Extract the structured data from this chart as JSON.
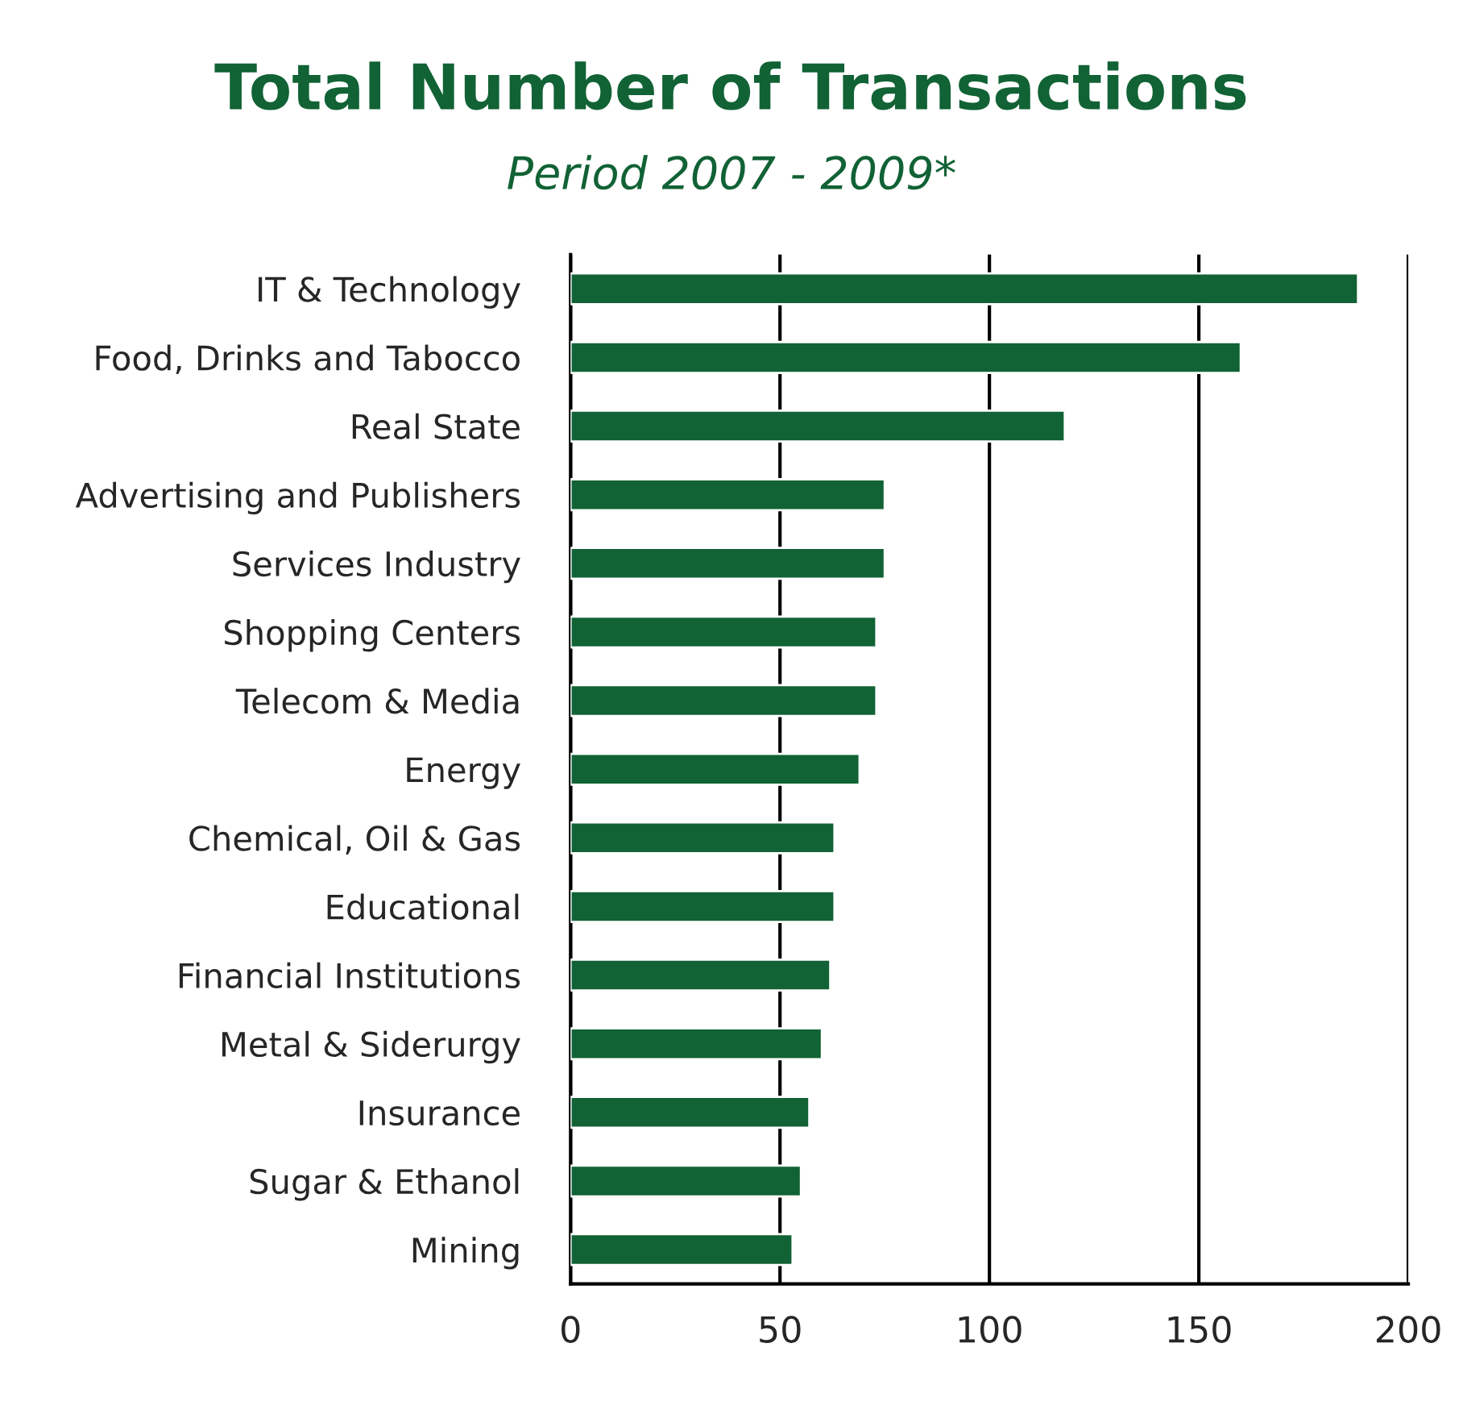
{
  "chart_data": {
    "type": "bar",
    "orientation": "horizontal",
    "title": "Total Number of Transactions",
    "subtitle": "Period 2007 - 2009*",
    "categories": [
      "IT & Technology",
      "Food, Drinks and Tabocco",
      "Real State",
      "Advertising and Publishers",
      "Services Industry",
      "Shopping Centers",
      "Telecom & Media",
      "Energy",
      "Chemical, Oil & Gas",
      "Educational",
      "Financial Institutions",
      "Metal & Siderurgy",
      "Insurance",
      "Sugar & Ethanol",
      "Mining"
    ],
    "values": [
      188,
      160,
      118,
      75,
      75,
      73,
      73,
      69,
      63,
      63,
      62,
      60,
      57,
      55,
      53
    ],
    "color": "#116235",
    "xlim": [
      0,
      200
    ],
    "xticks": [
      0,
      50,
      100,
      150,
      200
    ],
    "grid": "x",
    "legend": false
  }
}
